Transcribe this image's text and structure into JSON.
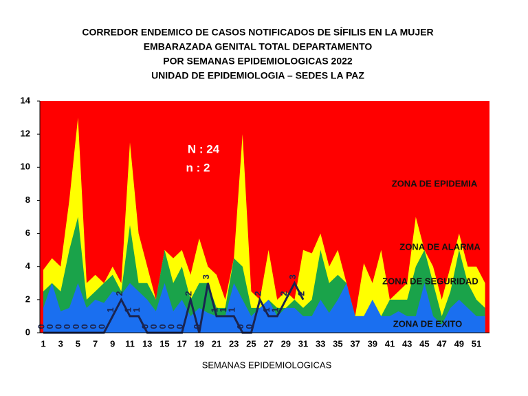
{
  "chart_data": {
    "type": "corridor",
    "title": [
      "CORREDOR ENDEMICO DE CASOS NOTIFICADOS DE SÍFILIS EN LA MUJER",
      "EMBARAZADA GENITAL TOTAL DEPARTAMENTO",
      "POR SEMANAS EPIDEMIOLOGICAS 2022",
      "UNIDAD DE EPIDEMIOLOGIA – SEDES LA PAZ"
    ],
    "x_label": "SEMANAS EPIDEMIOLOGICAS",
    "annotations": [
      "N : 24",
      "n : 2"
    ],
    "zones": [
      "ZONA DE EPIDEMIA",
      "ZONA DE ALARMA",
      "ZONA DE  SEGURIDAD",
      "ZONA DE  EXITO"
    ],
    "plot_background": "#ff0000",
    "categories": [
      1,
      null,
      3,
      null,
      5,
      null,
      7,
      null,
      9,
      null,
      11,
      null,
      13,
      null,
      15,
      null,
      17,
      null,
      19,
      null,
      21,
      null,
      23,
      null,
      25,
      null,
      27,
      null,
      29,
      null,
      31,
      null,
      33,
      null,
      35,
      null,
      37,
      null,
      39,
      null,
      41,
      null,
      43,
      null,
      45,
      null,
      47,
      null,
      49,
      null,
      51,
      null
    ],
    "series": [
      {
        "name": "ZONA DE ALARMA",
        "color": "#ffff00",
        "kind": "area",
        "values": [
          3.8,
          4.5,
          4,
          8,
          13,
          3,
          3.5,
          3,
          4,
          3,
          11.5,
          6,
          4,
          2,
          5,
          4.5,
          5,
          3.5,
          5.7,
          4,
          3.5,
          2,
          4.5,
          12,
          2.5,
          2,
          5,
          2,
          2.5,
          2,
          5,
          4.8,
          6,
          4,
          5,
          3,
          1,
          4.2,
          3,
          5,
          2,
          2.5,
          3,
          7,
          5,
          4,
          2,
          4,
          6,
          4,
          4,
          3
        ]
      },
      {
        "name": "ZONA DE  SEGURIDAD",
        "color": "#1aa34a",
        "kind": "area",
        "values": [
          2.5,
          3,
          2.5,
          5,
          7,
          2,
          2.5,
          3,
          3.5,
          2.5,
          6.5,
          3,
          3,
          2,
          5,
          3,
          4,
          2,
          3,
          3,
          1.5,
          1.5,
          4.5,
          4,
          1.5,
          1.5,
          2,
          1.5,
          1.5,
          2,
          1.5,
          2,
          5,
          3,
          3.5,
          3,
          1,
          1,
          1.5,
          1,
          2,
          2,
          2,
          4,
          5,
          3,
          1,
          2.5,
          5,
          3,
          2,
          1.5
        ]
      },
      {
        "name": "ZONA DE  EXITO",
        "color": "#1a6ff0",
        "kind": "area",
        "values": [
          1.5,
          3,
          1.3,
          1.5,
          3,
          1.5,
          2,
          1.8,
          2.5,
          2.3,
          3,
          2.5,
          2,
          1.3,
          3,
          1.3,
          2,
          1,
          1.5,
          1.2,
          1,
          1,
          3,
          2,
          1,
          1.5,
          2,
          1,
          1.5,
          1.5,
          1,
          1,
          2,
          1.2,
          2,
          3,
          1,
          1,
          2,
          1,
          1,
          1.3,
          1,
          1,
          3,
          1,
          0.5,
          1.5,
          2,
          1.5,
          1,
          1
        ]
      },
      {
        "name": "n",
        "color": "#1a2450",
        "kind": "line",
        "values": [
          0,
          0,
          0,
          0,
          0,
          0,
          0,
          0,
          1,
          2,
          1,
          1,
          0,
          0,
          0,
          0,
          0,
          2,
          0,
          3,
          1,
          1,
          1,
          0,
          0,
          2,
          1,
          1,
          2,
          3,
          2,
          null,
          null,
          null,
          null,
          null,
          null,
          null,
          null,
          null,
          null,
          null,
          null,
          null,
          null,
          null,
          null,
          null,
          null,
          null,
          null,
          null
        ]
      }
    ],
    "ylim": [
      0,
      14
    ],
    "yticks": [
      0,
      2,
      4,
      6,
      8,
      10,
      12,
      14
    ]
  }
}
